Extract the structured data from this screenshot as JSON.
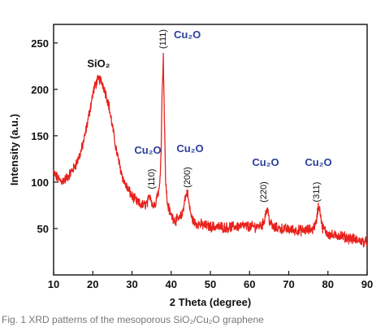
{
  "chart_data": {
    "type": "line",
    "title": "",
    "xlabel": "2 Theta (degree)",
    "ylabel": "Intensity (a.u.)",
    "xlim": [
      10,
      90
    ],
    "ylim": [
      0,
      270
    ],
    "xticks": [
      "10",
      "20",
      "30",
      "40",
      "50",
      "60",
      "70",
      "80",
      "90"
    ],
    "yticks": [
      "50",
      "100",
      "150",
      "200",
      "250"
    ],
    "grid": false,
    "legend": "none",
    "series": [
      {
        "color": "#e8231d",
        "points": [
          [
            10,
            110
          ],
          [
            11,
            104
          ],
          [
            12,
            101
          ],
          [
            13,
            103
          ],
          [
            14,
            108
          ],
          [
            15,
            114
          ],
          [
            16,
            122
          ],
          [
            17,
            133
          ],
          [
            18,
            150
          ],
          [
            19,
            172
          ],
          [
            20,
            195
          ],
          [
            20.5,
            203
          ],
          [
            21,
            208
          ],
          [
            21.5,
            211
          ],
          [
            22,
            210
          ],
          [
            22.5,
            206
          ],
          [
            23,
            200
          ],
          [
            24,
            185
          ],
          [
            25,
            160
          ],
          [
            26,
            135
          ],
          [
            27,
            115
          ],
          [
            28,
            100
          ],
          [
            29,
            92
          ],
          [
            30,
            85
          ],
          [
            31,
            80
          ],
          [
            32,
            76
          ],
          [
            33,
            75
          ],
          [
            34,
            78
          ],
          [
            34.6,
            87
          ],
          [
            35,
            80
          ],
          [
            35.4,
            74
          ],
          [
            36,
            78
          ],
          [
            36.5,
            88
          ],
          [
            37,
            92
          ],
          [
            37.4,
            130
          ],
          [
            37.7,
            200
          ],
          [
            38.0,
            236
          ],
          [
            38.3,
            160
          ],
          [
            38.6,
            100
          ],
          [
            39,
            78
          ],
          [
            39.5,
            70
          ],
          [
            40,
            64
          ],
          [
            41,
            59
          ],
          [
            42,
            60
          ],
          [
            42.8,
            65
          ],
          [
            43.5,
            82
          ],
          [
            44.1,
            90
          ],
          [
            44.6,
            75
          ],
          [
            45.2,
            62
          ],
          [
            46,
            56
          ],
          [
            48,
            54
          ],
          [
            50,
            52
          ],
          [
            52,
            52
          ],
          [
            54,
            51
          ],
          [
            56,
            52
          ],
          [
            58,
            53
          ],
          [
            60,
            52
          ],
          [
            62,
            52
          ],
          [
            63.5,
            55
          ],
          [
            64.2,
            68
          ],
          [
            64.6,
            71
          ],
          [
            65.1,
            58
          ],
          [
            66,
            51
          ],
          [
            68,
            50
          ],
          [
            70,
            49
          ],
          [
            72,
            48
          ],
          [
            74,
            48
          ],
          [
            76,
            49
          ],
          [
            77.0,
            56
          ],
          [
            77.5,
            74
          ],
          [
            78.0,
            70
          ],
          [
            78.5,
            52
          ],
          [
            80,
            44
          ],
          [
            81.5,
            42
          ],
          [
            83,
            43
          ],
          [
            85,
            40
          ],
          [
            87,
            38
          ],
          [
            89,
            36
          ],
          [
            90,
            35
          ]
        ]
      }
    ],
    "annotations": {
      "sio2": {
        "text": "SiO₂",
        "x": 21.5,
        "y": 224
      },
      "peaks": [
        {
          "formula": "Cu₂O",
          "hkl": "(111)",
          "x": 38.0
        },
        {
          "formula": "Cu₂O",
          "hkl": "(110)",
          "x": 35.0
        },
        {
          "formula": "Cu₂O",
          "hkl": "(200)",
          "x": 43.9
        },
        {
          "formula": "Cu₂O",
          "hkl": "(220)",
          "x": 64.3
        },
        {
          "formula": "Cu₂O",
          "hkl": "(311)",
          "x": 77.4
        }
      ]
    }
  },
  "caption": "Fig. 1  XRD patterns of the mesoporous SiO₂/Cu₂O graphene"
}
